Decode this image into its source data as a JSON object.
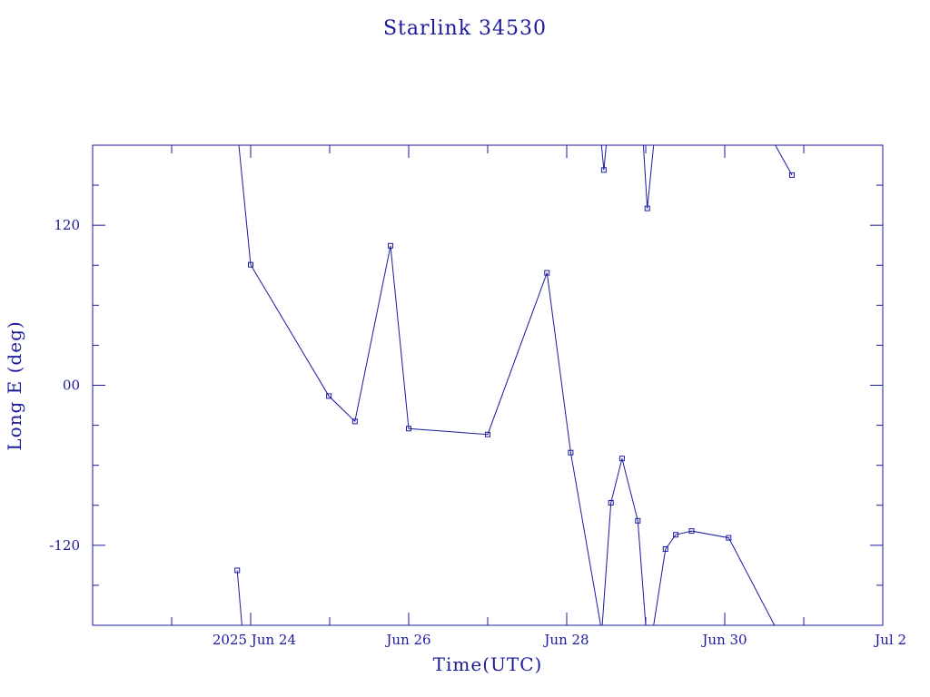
{
  "chart_data": {
    "type": "line",
    "title": "Starlink 34530",
    "xlabel": "Time(UTC)",
    "ylabel": "Long E (deg)",
    "ylim": [
      -180,
      180
    ],
    "xlim_days": [
      22.0,
      32.0
    ],
    "color": "#1a1a9c",
    "y_ticks": [
      {
        "value": 120,
        "label": "120"
      },
      {
        "value": 0,
        "label": "00"
      },
      {
        "value": -120,
        "label": "-120"
      }
    ],
    "x_ticks": [
      {
        "day": 24,
        "label": "2025 Jun 24"
      },
      {
        "day": 26,
        "label": "Jun 26"
      },
      {
        "day": 28,
        "label": "Jun 28"
      },
      {
        "day": 30,
        "label": "Jun 30"
      },
      {
        "day": 32,
        "label": "Jul  2"
      }
    ],
    "segments": [
      [
        {
          "t": 23.83,
          "lon": -138.8,
          "marker": true
        },
        {
          "t": 23.89,
          "lon": -180,
          "marker": false
        }
      ],
      [
        {
          "t": 23.85,
          "lon": 180,
          "marker": false
        },
        {
          "t": 24.0,
          "lon": 90.4,
          "marker": true
        },
        {
          "t": 24.99,
          "lon": -8.1,
          "marker": true
        },
        {
          "t": 25.32,
          "lon": -27.1,
          "marker": true
        },
        {
          "t": 25.77,
          "lon": 104.6,
          "marker": true
        },
        {
          "t": 26.0,
          "lon": -32.5,
          "marker": true
        },
        {
          "t": 27.0,
          "lon": -36.9,
          "marker": true
        },
        {
          "t": 27.75,
          "lon": 84.3,
          "marker": true
        },
        {
          "t": 28.05,
          "lon": -50.5,
          "marker": true
        },
        {
          "t": 28.43,
          "lon": -180,
          "marker": false
        }
      ],
      [
        {
          "t": 28.44,
          "lon": 180,
          "marker": false
        },
        {
          "t": 28.47,
          "lon": 161.4,
          "marker": true
        },
        {
          "t": 28.5,
          "lon": 180,
          "marker": false
        }
      ],
      [
        {
          "t": 28.45,
          "lon": -180,
          "marker": false
        },
        {
          "t": 28.56,
          "lon": -88.1,
          "marker": true
        },
        {
          "t": 28.7,
          "lon": -54.9,
          "marker": true
        },
        {
          "t": 28.9,
          "lon": -101.6,
          "marker": true
        },
        {
          "t": 29.0,
          "lon": -180,
          "marker": false
        }
      ],
      [
        {
          "t": 28.97,
          "lon": 180,
          "marker": false
        },
        {
          "t": 29.02,
          "lon": 132.6,
          "marker": true
        },
        {
          "t": 29.1,
          "lon": 180,
          "marker": false
        }
      ],
      [
        {
          "t": 29.1,
          "lon": -180,
          "marker": false
        },
        {
          "t": 29.25,
          "lon": -122.8,
          "marker": true
        },
        {
          "t": 29.38,
          "lon": -112.1,
          "marker": true
        },
        {
          "t": 29.58,
          "lon": -109.3,
          "marker": true
        },
        {
          "t": 30.05,
          "lon": -114.4,
          "marker": true
        },
        {
          "t": 30.63,
          "lon": -180,
          "marker": false
        }
      ],
      [
        {
          "t": 30.64,
          "lon": 180,
          "marker": false
        },
        {
          "t": 30.85,
          "lon": 157.6,
          "marker": true
        }
      ]
    ]
  }
}
